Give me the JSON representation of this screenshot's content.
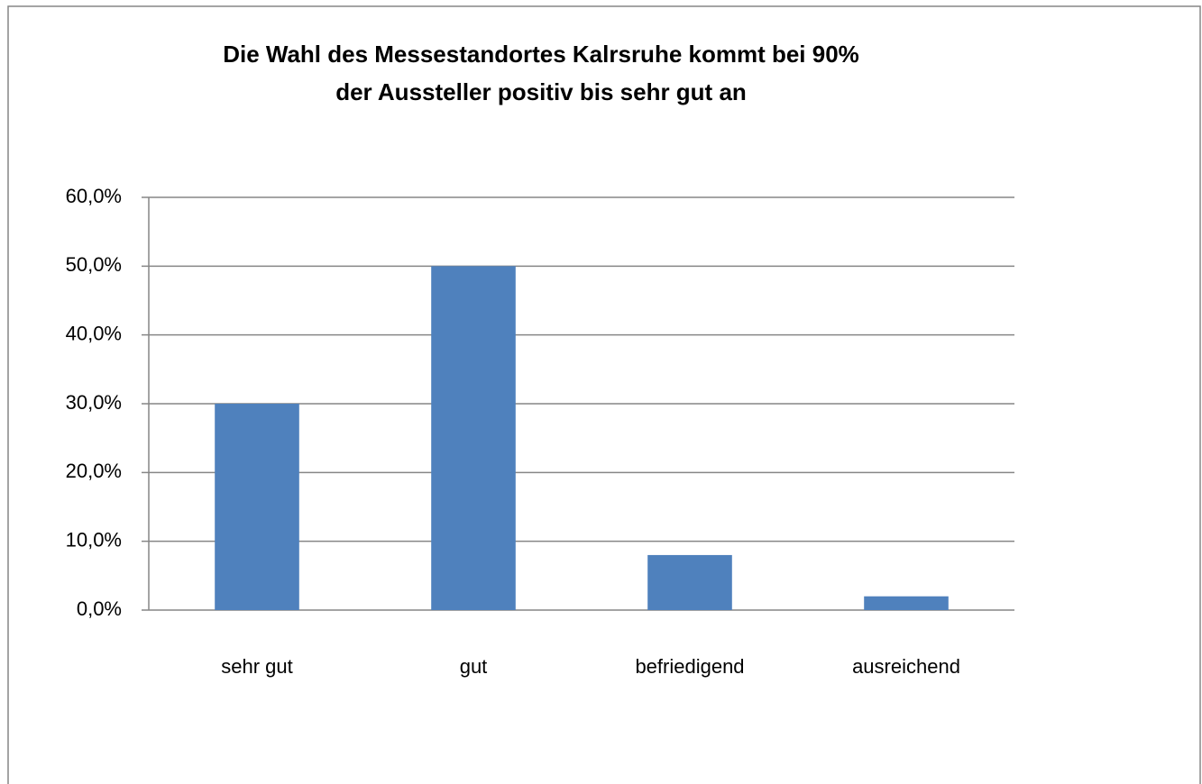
{
  "chart_data": {
    "type": "bar",
    "title": [
      "Die Wahl des Messestandortes Kalrsruhe kommt bei 90%",
      "der Aussteller positiv bis sehr gut an"
    ],
    "categories": [
      "sehr gut",
      "gut",
      "befriedigend",
      "ausreichend"
    ],
    "values": [
      30,
      50,
      8,
      2
    ],
    "color": "#4f81bd",
    "ylim": [
      0,
      60
    ],
    "yticks": [
      {
        "value": 0,
        "label": "0,0%"
      },
      {
        "value": 10,
        "label": "10,0%"
      },
      {
        "value": 20,
        "label": "20,0%"
      },
      {
        "value": 30,
        "label": "30,0%"
      },
      {
        "value": 40,
        "label": "40,0%"
      },
      {
        "value": 50,
        "label": "50,0%"
      },
      {
        "value": 60,
        "label": "60,0%"
      }
    ],
    "grid": true
  }
}
